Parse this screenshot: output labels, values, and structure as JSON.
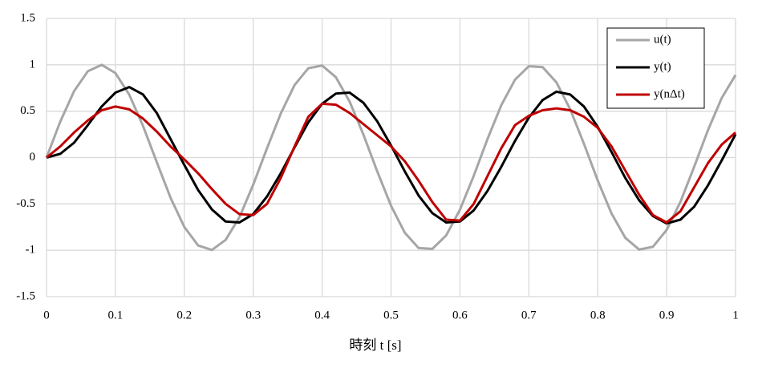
{
  "chart_data": {
    "type": "line",
    "xlabel": "時刻 t [s]",
    "x": [
      0,
      0.02,
      0.04,
      0.06,
      0.08,
      0.1,
      0.12,
      0.14,
      0.16,
      0.18,
      0.2,
      0.22,
      0.24,
      0.26,
      0.28,
      0.3,
      0.32,
      0.34,
      0.36,
      0.38,
      0.4,
      0.42,
      0.44,
      0.46,
      0.48,
      0.5,
      0.52,
      0.54,
      0.56,
      0.58,
      0.6,
      0.62,
      0.64,
      0.66,
      0.68,
      0.7,
      0.72,
      0.74,
      0.76,
      0.78,
      0.8,
      0.82,
      0.84,
      0.86,
      0.88,
      0.9,
      0.92,
      0.94,
      0.96,
      0.98,
      1
    ],
    "series": [
      {
        "name": "u(t)",
        "color": "#a6a6a6",
        "values": [
          0,
          0.388,
          0.716,
          0.931,
          1.0,
          0.911,
          0.679,
          0.342,
          -0.05,
          -0.434,
          -0.749,
          -0.948,
          -0.997,
          -0.888,
          -0.643,
          -0.293,
          0.1,
          0.475,
          0.782,
          0.963,
          0.992,
          0.866,
          0.602,
          0.246,
          -0.15,
          -0.52,
          -0.811,
          -0.976,
          -0.985,
          -0.84,
          -0.563,
          -0.198,
          0.199,
          0.564,
          0.84,
          0.985,
          0.975,
          0.811,
          0.521,
          0.148,
          -0.248,
          -0.603,
          -0.866,
          -0.992,
          -0.963,
          -0.781,
          -0.478,
          -0.099,
          0.296,
          0.643,
          0.89
        ]
      },
      {
        "name": "y(t)",
        "color": "#000000",
        "values": [
          0,
          0.04,
          0.16,
          0.35,
          0.55,
          0.7,
          0.76,
          0.68,
          0.48,
          0.2,
          -0.08,
          -0.35,
          -0.56,
          -0.69,
          -0.7,
          -0.61,
          -0.42,
          -0.17,
          0.11,
          0.38,
          0.58,
          0.69,
          0.7,
          0.59,
          0.39,
          0.13,
          -0.15,
          -0.41,
          -0.6,
          -0.7,
          -0.69,
          -0.57,
          -0.36,
          -0.1,
          0.18,
          0.43,
          0.62,
          0.71,
          0.68,
          0.55,
          0.33,
          0.06,
          -0.22,
          -0.46,
          -0.63,
          -0.71,
          -0.67,
          -0.53,
          -0.3,
          -0.03,
          0.25
        ]
      },
      {
        "name": "y(nΔt)",
        "color": "#c00000",
        "values": [
          0,
          0.12,
          0.27,
          0.4,
          0.51,
          0.55,
          0.52,
          0.42,
          0.28,
          0.12,
          -0.02,
          -0.17,
          -0.34,
          -0.5,
          -0.61,
          -0.62,
          -0.5,
          -0.22,
          0.12,
          0.44,
          0.58,
          0.57,
          0.48,
          0.36,
          0.24,
          0.12,
          -0.04,
          -0.25,
          -0.48,
          -0.67,
          -0.68,
          -0.5,
          -0.2,
          0.1,
          0.35,
          0.45,
          0.51,
          0.53,
          0.51,
          0.44,
          0.32,
          0.12,
          -0.14,
          -0.4,
          -0.62,
          -0.7,
          -0.58,
          -0.32,
          -0.06,
          0.14,
          0.27
        ]
      }
    ],
    "xlim": [
      0,
      1
    ],
    "xticks": [
      0,
      0.1,
      0.2,
      0.3,
      0.4,
      0.5,
      0.6,
      0.7,
      0.8,
      0.9,
      1
    ],
    "ylim": [
      -1.5,
      1.5
    ],
    "yticks": [
      -1.5,
      -1,
      -0.5,
      0,
      0.5,
      1,
      1.5
    ],
    "grid": true,
    "legend": "upper right"
  }
}
